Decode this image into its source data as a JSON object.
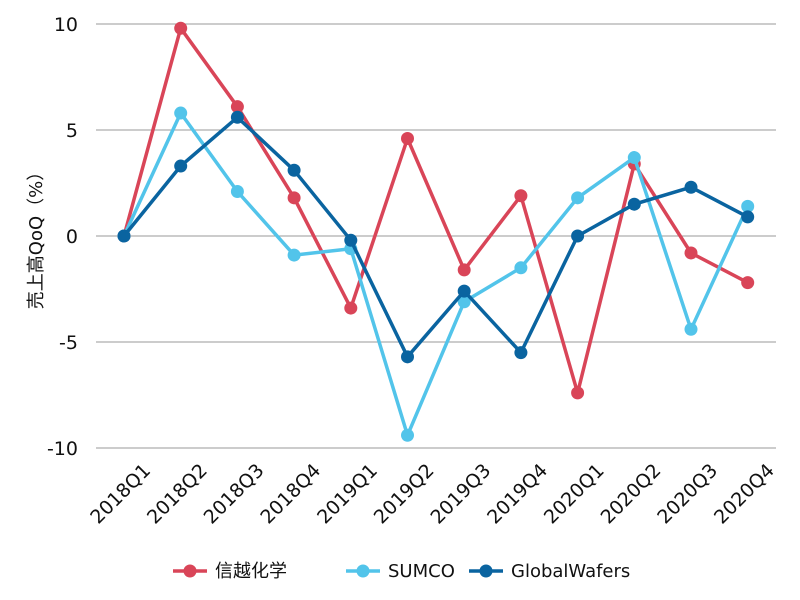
{
  "chart_data": {
    "type": "line",
    "title": "",
    "xlabel": "",
    "ylabel": "売上高QoQ（%）",
    "ylim": [
      -10,
      10
    ],
    "yticks": [
      -10,
      -5,
      0,
      5,
      10
    ],
    "ytick_labels": [
      "-10",
      "-5",
      "0",
      "5",
      "10"
    ],
    "grid": "horizontal",
    "legend_position": "bottom",
    "categories": [
      "2018Q1",
      "2018Q2",
      "2018Q3",
      "2018Q4",
      "2019Q1",
      "2019Q2",
      "2019Q3",
      "2019Q4",
      "2020Q1",
      "2020Q2",
      "2020Q3",
      "2020Q4"
    ],
    "series": [
      {
        "name": "信越化学",
        "color": "#d94558",
        "values": [
          0,
          9.8,
          6.1,
          1.8,
          -3.4,
          4.6,
          -1.6,
          1.9,
          -7.4,
          3.4,
          -0.8,
          -2.2
        ]
      },
      {
        "name": "SUMCO",
        "color": "#52c4ea",
        "values": [
          0,
          5.8,
          2.1,
          -0.9,
          -0.6,
          -9.4,
          -3.1,
          -1.5,
          1.8,
          3.7,
          -4.4,
          1.4
        ]
      },
      {
        "name": "GlobalWafers",
        "color": "#0a64a0",
        "values": [
          0,
          3.3,
          5.6,
          3.1,
          -0.2,
          -5.7,
          -2.6,
          -5.5,
          0,
          1.5,
          2.3,
          0.9
        ]
      }
    ]
  }
}
